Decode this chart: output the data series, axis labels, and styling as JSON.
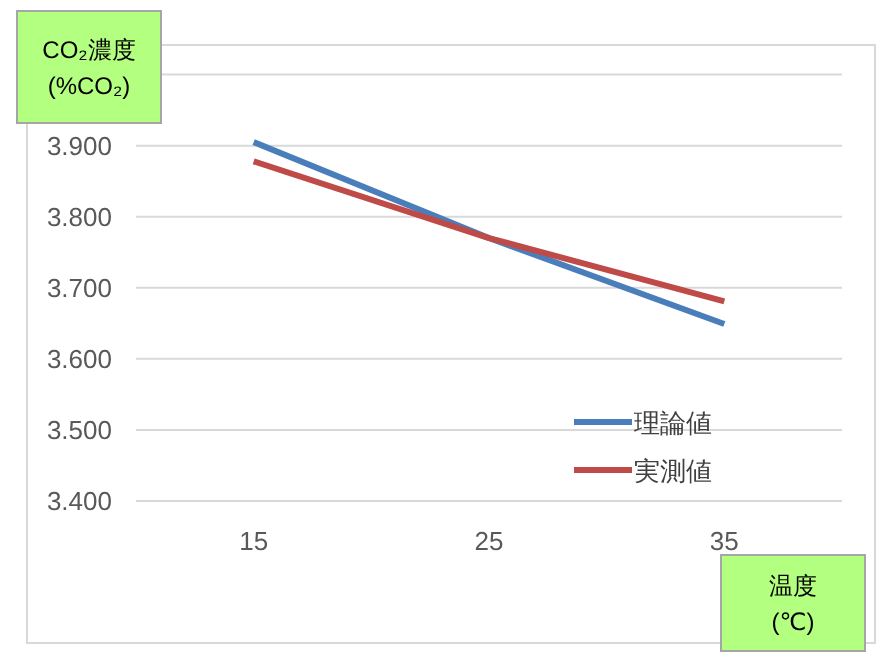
{
  "chart_data": {
    "type": "line",
    "ylabel": "CO₂濃度 (%CO₂)",
    "xlabel": "温度 (℃)",
    "categories": [
      "15",
      "25",
      "35"
    ],
    "series": [
      {
        "name": "理論値",
        "color": "#4a7ebb",
        "values": [
          3.905,
          3.77,
          3.649
        ]
      },
      {
        "name": "実測値",
        "color": "#be4b48",
        "values": [
          3.878,
          3.77,
          3.681
        ]
      }
    ],
    "ylim": [
      3.4,
      4.0
    ],
    "yticks": [
      {
        "value": 3.4,
        "label": "3.400"
      },
      {
        "value": 3.5,
        "label": "3.500"
      },
      {
        "value": 3.6,
        "label": "3.600"
      },
      {
        "value": 3.7,
        "label": "3.700"
      },
      {
        "value": 3.8,
        "label": "3.800"
      },
      {
        "value": 3.9,
        "label": "3.900"
      },
      {
        "value": 4.0,
        "label": null
      }
    ],
    "grid": "y",
    "legend": "bottom right",
    "marker": "none",
    "line_style": "solid"
  }
}
